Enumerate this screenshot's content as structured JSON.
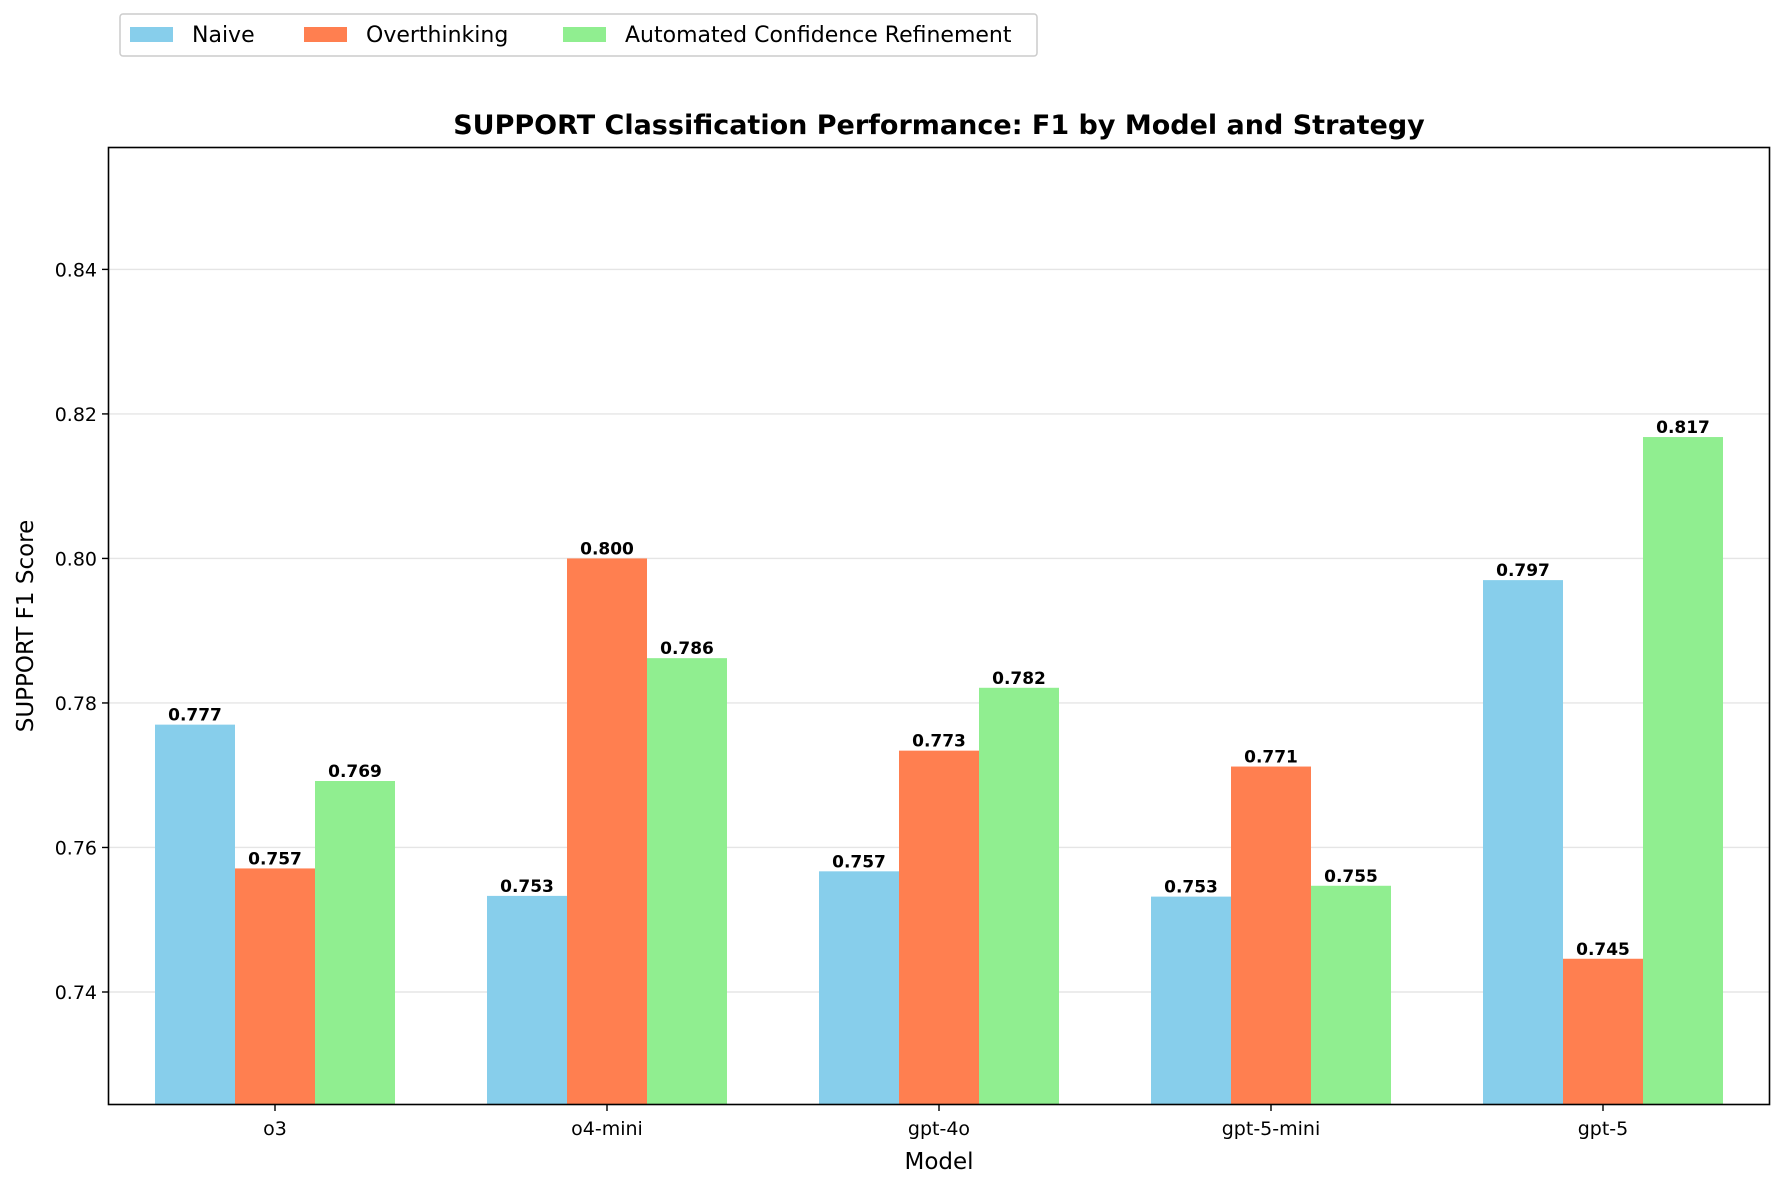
{
  "chart_data": {
    "type": "bar",
    "title": "SUPPORT Classification Performance: F1 by Model and Strategy",
    "xlabel": "Model",
    "ylabel": "SUPPORT F1 Score",
    "categories": [
      "o3",
      "o4-mini",
      "gpt-4o",
      "gpt-5-mini",
      "gpt-5"
    ],
    "series": [
      {
        "name": "Naive",
        "color": "#87ceeb",
        "values": [
          0.777,
          0.7533,
          0.7567,
          0.7532,
          0.797
        ],
        "labels": [
          "0.777",
          "0.753",
          "0.757",
          "0.753",
          "0.797"
        ]
      },
      {
        "name": "Overthinking",
        "color": "#ff7f50",
        "values": [
          0.7571,
          0.8,
          0.7734,
          0.7712,
          0.7446
        ],
        "labels": [
          "0.757",
          "0.800",
          "0.773",
          "0.771",
          "0.745"
        ]
      },
      {
        "name": "Automated Confidence Refinement",
        "color": "#90ee90",
        "values": [
          0.7692,
          0.7862,
          0.7821,
          0.7547,
          0.8168
        ],
        "labels": [
          "0.769",
          "0.786",
          "0.782",
          "0.755",
          "0.817"
        ]
      }
    ],
    "ylim": [
      0.7245,
      0.8568
    ],
    "yticks": [
      0.74,
      0.76,
      0.78,
      0.8,
      0.82,
      0.84
    ],
    "ytick_labels": [
      "0.74",
      "0.76",
      "0.78",
      "0.80",
      "0.82",
      "0.84"
    ],
    "grid": "horizontal",
    "legend_position": "top-left"
  }
}
